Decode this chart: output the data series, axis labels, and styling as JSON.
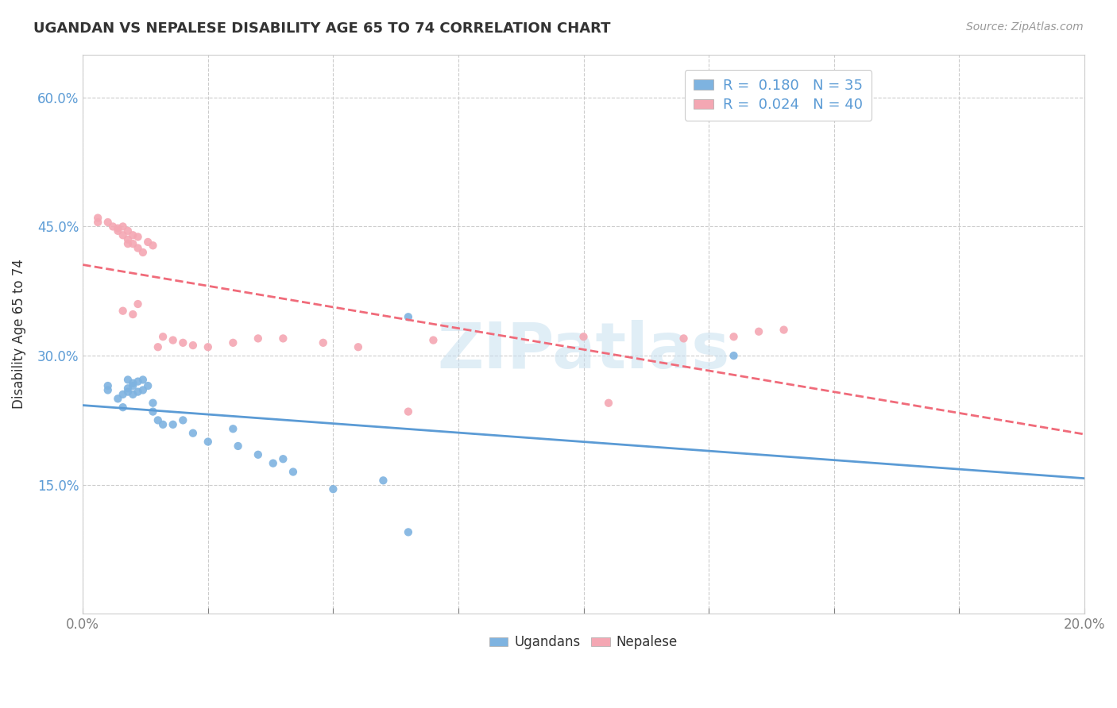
{
  "title": "UGANDAN VS NEPALESE DISABILITY AGE 65 TO 74 CORRELATION CHART",
  "source": "Source: ZipAtlas.com",
  "ylabel": "Disability Age 65 to 74",
  "xlim": [
    0.0,
    0.2
  ],
  "ylim": [
    0.0,
    0.65
  ],
  "xticks": [
    0.0,
    0.025,
    0.05,
    0.075,
    0.1,
    0.125,
    0.15,
    0.175,
    0.2
  ],
  "yticks": [
    0.0,
    0.15,
    0.3,
    0.45,
    0.6
  ],
  "ugandan_color": "#7eb3e0",
  "nepalese_color": "#f4a7b3",
  "ugandan_line_color": "#5b9bd5",
  "nepalese_line_color": "#f06b7a",
  "R_ugandan": 0.18,
  "N_ugandan": 35,
  "R_nepalese": 0.024,
  "N_nepalese": 40,
  "watermark": "ZIPatlas",
  "grid_color": "#cccccc",
  "ugandan_x": [
    0.005,
    0.005,
    0.007,
    0.008,
    0.008,
    0.009,
    0.009,
    0.009,
    0.01,
    0.01,
    0.01,
    0.011,
    0.011,
    0.012,
    0.012,
    0.013,
    0.014,
    0.014,
    0.015,
    0.016,
    0.018,
    0.02,
    0.022,
    0.025,
    0.03,
    0.031,
    0.035,
    0.038,
    0.04,
    0.042,
    0.05,
    0.06,
    0.065,
    0.13,
    0.065
  ],
  "ugandan_y": [
    0.265,
    0.26,
    0.25,
    0.255,
    0.24,
    0.262,
    0.258,
    0.272,
    0.255,
    0.265,
    0.268,
    0.27,
    0.258,
    0.26,
    0.272,
    0.265,
    0.245,
    0.235,
    0.225,
    0.22,
    0.22,
    0.225,
    0.21,
    0.2,
    0.215,
    0.195,
    0.185,
    0.175,
    0.18,
    0.165,
    0.145,
    0.155,
    0.095,
    0.3,
    0.345
  ],
  "nepalese_x": [
    0.003,
    0.005,
    0.006,
    0.007,
    0.008,
    0.008,
    0.009,
    0.009,
    0.009,
    0.01,
    0.01,
    0.011,
    0.011,
    0.012,
    0.013,
    0.014,
    0.015,
    0.016,
    0.018,
    0.02,
    0.022,
    0.025,
    0.03,
    0.035,
    0.04,
    0.048,
    0.055,
    0.065,
    0.07,
    0.1,
    0.12,
    0.13,
    0.135,
    0.14,
    0.007,
    0.008,
    0.01,
    0.011,
    0.105,
    0.003
  ],
  "nepalese_y": [
    0.455,
    0.455,
    0.45,
    0.445,
    0.45,
    0.44,
    0.445,
    0.435,
    0.43,
    0.44,
    0.43,
    0.425,
    0.438,
    0.42,
    0.432,
    0.428,
    0.31,
    0.322,
    0.318,
    0.315,
    0.312,
    0.31,
    0.315,
    0.32,
    0.32,
    0.315,
    0.31,
    0.235,
    0.318,
    0.322,
    0.32,
    0.322,
    0.328,
    0.33,
    0.448,
    0.352,
    0.348,
    0.36,
    0.245,
    0.46
  ]
}
